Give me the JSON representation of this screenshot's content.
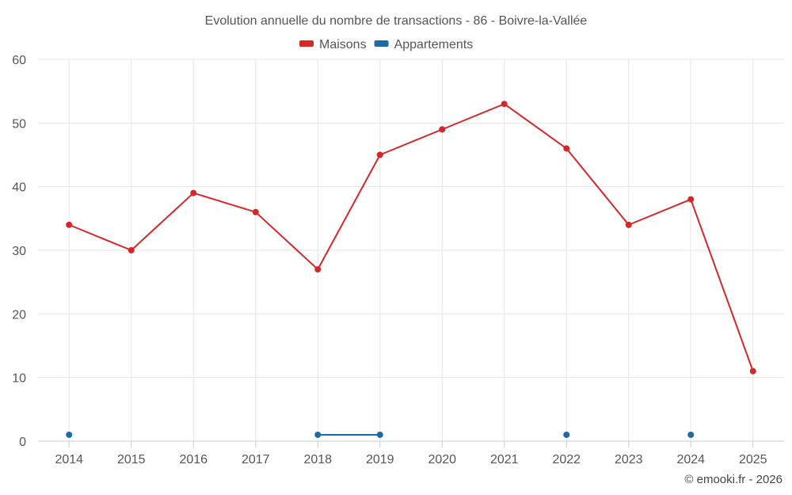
{
  "chart_data": {
    "type": "line",
    "title": "Evolution annuelle du nombre de transactions - 86 - Boivre-la-Vallée",
    "categories": [
      "2014",
      "2015",
      "2016",
      "2017",
      "2018",
      "2019",
      "2020",
      "2021",
      "2022",
      "2023",
      "2024",
      "2025"
    ],
    "series": [
      {
        "name": "Maisons",
        "color": "#d62728",
        "values": [
          34,
          30,
          39,
          36,
          27,
          45,
          49,
          53,
          46,
          34,
          38,
          11
        ]
      },
      {
        "name": "Appartements",
        "color": "#1f6aa5",
        "values": [
          1,
          null,
          null,
          null,
          1,
          1,
          null,
          null,
          1,
          null,
          1,
          null
        ]
      }
    ],
    "ylim": [
      0,
      60
    ],
    "yticks": [
      0,
      10,
      20,
      30,
      40,
      50,
      60
    ],
    "grid": true,
    "legend_position": "top-center"
  },
  "credit": "© emooki.fr - 2026"
}
